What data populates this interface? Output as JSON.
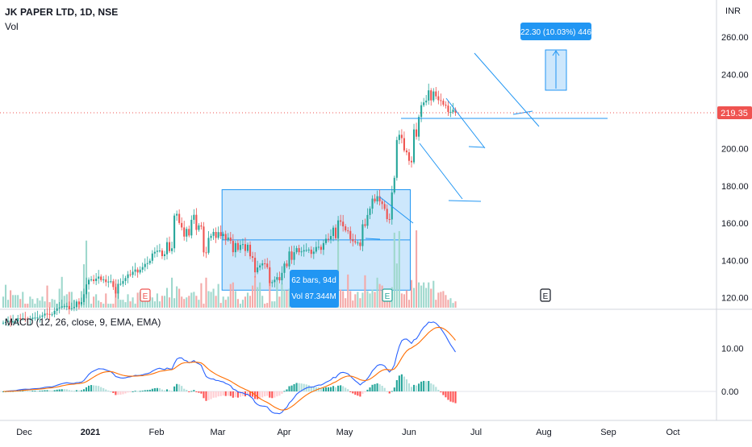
{
  "header": {
    "title": "JK PAPER LTD, 1D, NSE",
    "volume_label": "Vol",
    "macd_label": "MACD (12, 26, close, 9, EMA, EMA)",
    "currency": "INR"
  },
  "colors": {
    "up": "#26a69a",
    "down": "#ef5350",
    "vol_up": "#9fd8cd",
    "vol_down": "#f4a9a8",
    "drawing": "#2196f3",
    "macd_line": "#2962ff",
    "signal_line": "#ff6d00",
    "price_line": "#ef5350",
    "range_box": "rgba(144,202,249,0.45)"
  },
  "chart_data": [
    {
      "type": "candlestick",
      "symbol": "JK PAPER LTD",
      "interval": "1D",
      "exchange": "NSE",
      "x_ticks": [
        "Dec",
        "2021",
        "Feb",
        "Mar",
        "Apr",
        "May",
        "Jun",
        "Jul",
        "Aug",
        "Sep",
        "Oct"
      ],
      "y_ticks": [
        "120.00",
        "140.00",
        "160.00",
        "180.00",
        "200.00",
        "220.00",
        "240.00",
        "260.00"
      ],
      "ylim": [
        105,
        262
      ],
      "last_price": "219.35",
      "earnings_markers": [
        "E",
        "E",
        "E"
      ],
      "series_close": [
        106.5,
        106.8,
        107.5,
        107.1,
        107.2,
        107.2,
        108.9,
        108.6,
        108.8,
        108.5,
        108.1,
        108.5,
        109.2,
        109.2,
        109.3,
        109.7,
        110.4,
        111.4,
        111.2,
        110.8,
        111,
        112.9,
        114.3,
        114.6,
        115.3,
        115.4,
        115.5,
        113.8,
        114.3,
        115,
        117.9,
        116.4,
        117.6,
        121.8,
        127.1,
        129.6,
        129.8,
        128.9,
        130.2,
        131.3,
        129.4,
        129.8,
        128.3,
        128.6,
        128.8,
        125.7,
        122.2,
        127.4,
        127.4,
        128.9,
        130.5,
        132.5,
        132.2,
        133.9,
        135.1,
        133.5,
        135,
        136.4,
        138.1,
        138.5,
        139.8,
        143.7,
        144.6,
        145.2,
        145.3,
        142.3,
        143.3,
        149.8,
        145,
        146.5,
        164.1,
        165,
        160.1,
        157.7,
        152.8,
        156.9,
        153.4,
        161.8,
        164.5,
        156.4,
        158.8,
        158.2,
        144.3,
        144.1,
        152.1,
        153.2,
        155.3,
        152.1,
        155.2,
        153.1,
        154.2,
        151.1,
        152.3,
        150.5,
        144.4,
        149.3,
        145.6,
        148.3,
        148.7,
        145.1,
        148.4,
        142.2,
        141.4,
        133.6,
        136.2,
        137.3,
        138.4,
        138.3,
        136.3,
        127.8,
        128.3,
        129.6,
        131,
        129.3,
        133.3,
        138.3,
        136.8,
        144.8,
        140.3,
        144.4,
        146.6,
        144.4,
        144.8,
        145.5,
        145.6,
        145.8,
        143.5,
        144.7,
        147.2,
        147.3,
        145.7,
        149.3,
        151.6,
        151.3,
        153.1,
        157.6,
        151.9,
        161.5,
        160.8,
        158.3,
        156.1,
        155.8,
        151.4,
        150.3,
        149.6,
        149.6,
        147.7,
        159.4,
        158.6,
        164.4,
        167.8,
        173.2,
        171.7,
        174.5,
        171.7,
        170.3,
        167.7,
        162.2,
        162,
        176.5,
        184.4,
        204.7,
        207.5,
        205.7,
        199.1,
        198.1,
        193.5,
        192.7,
        210.4,
        206.5,
        217.1,
        223.4,
        224.9,
        225.9,
        231.4,
        226,
        230.8,
        228.2,
        226.1,
        225.8,
        223.7,
        223.2,
        219.8,
        219.8,
        221,
        219.3
      ],
      "series_open": [
        106.4,
        106.5,
        106.8,
        107.5,
        107.1,
        107.2,
        107.2,
        108.9,
        108.6,
        108.8,
        108.5,
        108.1,
        108.5,
        109.2,
        109.2,
        109.3,
        109.7,
        110.4,
        111.4,
        111.2,
        110.8,
        111,
        112.9,
        114.3,
        114.6,
        115.3,
        115.4,
        115.5,
        113.8,
        114.3,
        115,
        117.9,
        116.4,
        117.6,
        121.8,
        127.1,
        129.6,
        129.8,
        128.9,
        130.2,
        131.3,
        129.4,
        129.8,
        128.3,
        128.6,
        128.8,
        125.7,
        122.2,
        127.4,
        127.4,
        128.9,
        130.5,
        132.5,
        132.2,
        133.9,
        135.1,
        133.5,
        135,
        136.4,
        138.1,
        138.5,
        139.8,
        143.7,
        144.6,
        145.2,
        145.3,
        142.3,
        143.3,
        149.8,
        145,
        146.5,
        164.1,
        165,
        160.1,
        157.7,
        152.8,
        156.9,
        153.4,
        161.8,
        164.5,
        156.4,
        158.8,
        158.2,
        144.3,
        144.1,
        152.1,
        153.2,
        155.3,
        152.1,
        155.2,
        153.1,
        154.2,
        151.1,
        152.3,
        150.5,
        144.4,
        149.3,
        145.6,
        148.3,
        148.7,
        145.1,
        148.4,
        142.2,
        141.4,
        133.6,
        136.2,
        137.3,
        138.4,
        138.3,
        136.3,
        127.8,
        128.3,
        129.6,
        131,
        129.3,
        133.3,
        138.3,
        136.8,
        144.8,
        140.3,
        144.4,
        146.6,
        144.4,
        144.8,
        145.5,
        145.6,
        145.8,
        143.5,
        144.7,
        147.2,
        147.3,
        145.7,
        149.3,
        151.6,
        151.3,
        153.1,
        157.6,
        151.9,
        161.5,
        160.8,
        158.3,
        156.1,
        155.8,
        151.4,
        150.3,
        149.6,
        149.6,
        147.7,
        159.4,
        158.6,
        164.4,
        167.8,
        173.2,
        171.7,
        174.5,
        171.7,
        170.3,
        167.7,
        162.2,
        162,
        176.5,
        184.4,
        204.7,
        207.5,
        205.7,
        199.1,
        198.1,
        193.5,
        192.7,
        210.4,
        206.5,
        217.1,
        223.4,
        224.9,
        225.9,
        231.4,
        226,
        230.8,
        228.2,
        226.1,
        225.8,
        223.7,
        223.2,
        219.8,
        219.8,
        221
      ]
    },
    {
      "type": "bar",
      "name": "Vol",
      "relative_volume": [
        0.14,
        0.29,
        0.1,
        0.22,
        0.16,
        0.16,
        0.16,
        0.11,
        0.2,
        0.05,
        0.05,
        0.14,
        0.11,
        0.05,
        0.12,
        0.09,
        0.14,
        0.08,
        0.28,
        0.07,
        0.11,
        0.1,
        0.05,
        0.24,
        0.39,
        0.15,
        0.17,
        0.2,
        0.2,
        0.1,
        0.05,
        0.05,
        0.21,
        0.55,
        0.85,
        0.2,
        0.05,
        0.14,
        0.17,
        0.09,
        0.07,
        0.05,
        0.18,
        0.05,
        0.05,
        0.05,
        0.36,
        0.2,
        0.1,
        0.1,
        0.07,
        0.17,
        0.08,
        0.13,
        0.05,
        0.19,
        0.2,
        0.12,
        0.19,
        0.08,
        0.14,
        0.13,
        0.08,
        0.18,
        0.08,
        0.15,
        0.15,
        0.25,
        0.13,
        0.38,
        0.12,
        0.27,
        0.24,
        0.14,
        0.11,
        0.13,
        0.15,
        0.19,
        0.2,
        0.15,
        0.1,
        0.31,
        0.05,
        0.38,
        0.21,
        0.2,
        0.24,
        0.15,
        0.3,
        0.06,
        0.14,
        0.1,
        0.14,
        0.3,
        0.32,
        0.21,
        0.11,
        0.05,
        0.1,
        0.14,
        0.19,
        0.15,
        0.28,
        0.4,
        0.26,
        0.32,
        0.15,
        0.05,
        0.06,
        0.34,
        0.08,
        0.08,
        0.33,
        0.14,
        0.3,
        0.23,
        0.22,
        0.24,
        0.18,
        0.17,
        0.21,
        0.25,
        0.17,
        0.13,
        0.12,
        0.14,
        0.15,
        0.31,
        0.22,
        0.1,
        0.22,
        0.21,
        0.06,
        0.29,
        0.18,
        0.19,
        0.1,
        0.88,
        0.23,
        0.21,
        0.12,
        0.42,
        0.21,
        0.09,
        0.17,
        0.2,
        0.12,
        0.19,
        0.41,
        0.21,
        0.18,
        0.23,
        0.2,
        0.38,
        0.3,
        0.28,
        0.23,
        0.2,
        0.19,
        0.26,
        0.95,
        0.56,
        0.97,
        0.18,
        0.17,
        0.22,
        0.1,
        0.35,
        0.25,
        0.98,
        0.32,
        0.28,
        0.32,
        0.25,
        0.32,
        0.24,
        0.34,
        0.1,
        0.19,
        0.2,
        0.21,
        0.16,
        0.1,
        0.12,
        0.06,
        0.08
      ]
    },
    {
      "type": "line",
      "name": "MACD",
      "y_ticks": [
        "10.00",
        "0.00"
      ],
      "ylim": [
        -6,
        18
      ],
      "fast_period": 12,
      "slow_period": 26,
      "signal_period": 9
    }
  ],
  "drawings": {
    "date_range_bars": "62 bars, 94d",
    "date_range_volume": "Vol 87.344M",
    "projection_label": "22.30 (10.03%) 446"
  }
}
